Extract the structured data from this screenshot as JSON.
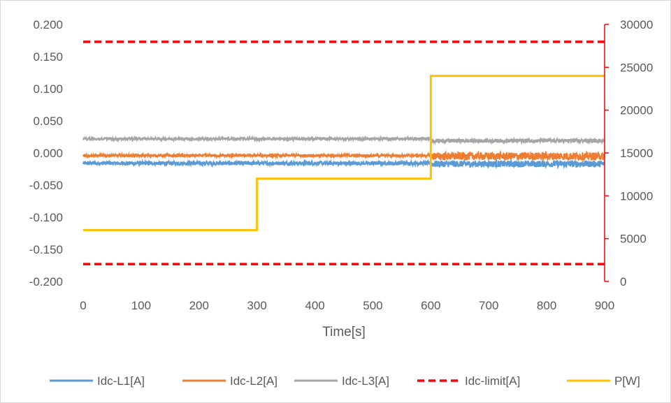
{
  "chart_data": {
    "type": "line",
    "title": "",
    "xlabel": "Time[s]",
    "x_ticks": [
      "0",
      "100",
      "200",
      "300",
      "400",
      "500",
      "600",
      "700",
      "800",
      "900"
    ],
    "xlim": [
      0,
      900
    ],
    "y_left_ticks": [
      "0.200",
      "0.150",
      "0.100",
      "0.050",
      "0.000",
      "-0.050",
      "-0.100",
      "-0.150",
      "-0.200"
    ],
    "ylim_left": [
      -0.2,
      0.2
    ],
    "y_right_ticks": [
      "30000",
      "25000",
      "20000",
      "15000",
      "10000",
      "5000",
      "0"
    ],
    "ylim_right": [
      0,
      30000
    ],
    "right_axis_color": "#ff0000",
    "grid": false,
    "legend_position": "bottom",
    "series": [
      {
        "name": "Idc-L1[A]",
        "axis": "left",
        "style": "noisy",
        "color": "#5b9bd5",
        "segments": [
          {
            "x_start": 0,
            "x_end": 600,
            "mean": -0.016,
            "noise": 0.003
          },
          {
            "x_start": 600,
            "x_end": 900,
            "mean": -0.017,
            "noise": 0.005
          }
        ]
      },
      {
        "name": "Idc-L2[A]",
        "axis": "left",
        "style": "noisy",
        "color": "#ed7d31",
        "segments": [
          {
            "x_start": 0,
            "x_end": 600,
            "mean": -0.004,
            "noise": 0.002
          },
          {
            "x_start": 600,
            "x_end": 900,
            "mean": -0.005,
            "noise": 0.006
          }
        ]
      },
      {
        "name": "Idc-L3[A]",
        "axis": "left",
        "style": "noisy",
        "color": "#a5a5a5",
        "segments": [
          {
            "x_start": 0,
            "x_end": 600,
            "mean": 0.022,
            "noise": 0.002
          },
          {
            "x_start": 600,
            "x_end": 900,
            "mean": 0.019,
            "noise": 0.003
          }
        ]
      },
      {
        "name": "Idc-limit[A]",
        "axis": "left",
        "style": "dashed",
        "color": "#ff0000",
        "lines": [
          0.173,
          -0.173
        ]
      },
      {
        "name": "P[W]",
        "axis": "right",
        "style": "step",
        "color": "#ffc000",
        "x": [
          0,
          300,
          300,
          600,
          600,
          900
        ],
        "y": [
          6000,
          6000,
          12000,
          12000,
          24000,
          24000
        ]
      }
    ]
  }
}
